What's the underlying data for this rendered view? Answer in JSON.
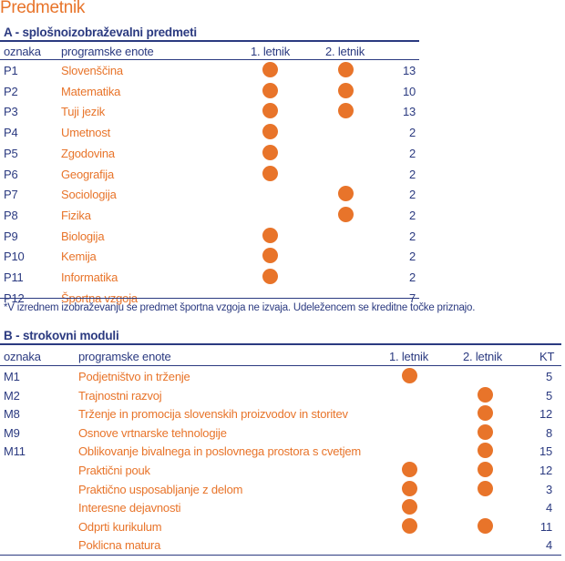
{
  "page_title": "Predmetnik",
  "colors": {
    "accent": "#e8742a",
    "navy": "#2b3a80"
  },
  "section_a": {
    "title": "A - splošnoizobraževalni predmeti",
    "headers": {
      "code": "oznaka",
      "name": "programske enote",
      "year1": "1. letnik",
      "year2": "2. letnik",
      "kt": ""
    },
    "rows": [
      {
        "code": "P1",
        "name": "Slovenščina",
        "year1": true,
        "year2": true,
        "kt": "13"
      },
      {
        "code": "P2",
        "name": "Matematika",
        "year1": true,
        "year2": true,
        "kt": "10"
      },
      {
        "code": "P3",
        "name": "Tuji jezik",
        "year1": true,
        "year2": true,
        "kt": "13"
      },
      {
        "code": "P4",
        "name": "Umetnost",
        "year1": true,
        "year2": false,
        "kt": "2"
      },
      {
        "code": "P5",
        "name": "Zgodovina",
        "year1": true,
        "year2": false,
        "kt": "2"
      },
      {
        "code": "P6",
        "name": "Geografija",
        "year1": true,
        "year2": false,
        "kt": "2"
      },
      {
        "code": "P7",
        "name": "Sociologija",
        "year1": false,
        "year2": true,
        "kt": "2"
      },
      {
        "code": "P8",
        "name": "Fizika",
        "year1": false,
        "year2": true,
        "kt": "2"
      },
      {
        "code": "P9",
        "name": "Biologija",
        "year1": true,
        "year2": false,
        "kt": "2"
      },
      {
        "code": "P10",
        "name": "Kemija",
        "year1": true,
        "year2": false,
        "kt": "2"
      },
      {
        "code": "P11",
        "name": "Informatika",
        "year1": true,
        "year2": false,
        "kt": "2"
      },
      {
        "code": "P12",
        "name": "Športna vzgoja",
        "year1": false,
        "year2": false,
        "kt": "7"
      }
    ],
    "note": "*V izrednem izobraževanju se predmet športna vzgoja ne izvaja. Udeležencem se kreditne točke priznajo."
  },
  "section_b": {
    "title": "B - strokovni moduli",
    "headers": {
      "code": "oznaka",
      "name": "programske enote",
      "year1": "1. letnik",
      "year2": "2. letnik",
      "kt": "KT"
    },
    "rows": [
      {
        "code": "M1",
        "name": "Podjetništvo in trženje",
        "year1": true,
        "year2": false,
        "kt": "5"
      },
      {
        "code": "M2",
        "name": "Trajnostni razvoj",
        "year1": false,
        "year2": true,
        "kt": "5"
      },
      {
        "code": "M8",
        "name": "Trženje in promocija slovenskih proizvodov in storitev",
        "year1": false,
        "year2": true,
        "kt": "12"
      },
      {
        "code": "M9",
        "name": "Osnove vrtnarske tehnologije",
        "year1": false,
        "year2": true,
        "kt": "8"
      },
      {
        "code": "M11",
        "name": "Oblikovanje bivalnega in poslovnega prostora s cvetjem",
        "year1": false,
        "year2": true,
        "kt": "15"
      },
      {
        "code": "",
        "name": "Praktični pouk",
        "year1": true,
        "year2": true,
        "kt": "12"
      },
      {
        "code": "",
        "name": "Praktično usposabljanje z delom",
        "year1": true,
        "year2": true,
        "kt": "3"
      },
      {
        "code": "",
        "name": "Interesne dejavnosti",
        "year1": true,
        "year2": false,
        "kt": "4"
      },
      {
        "code": "",
        "name": "Odprti kurikulum",
        "year1": true,
        "year2": true,
        "kt": "11"
      },
      {
        "code": "",
        "name": "Poklicna matura",
        "year1": false,
        "year2": false,
        "kt": "4"
      }
    ]
  }
}
